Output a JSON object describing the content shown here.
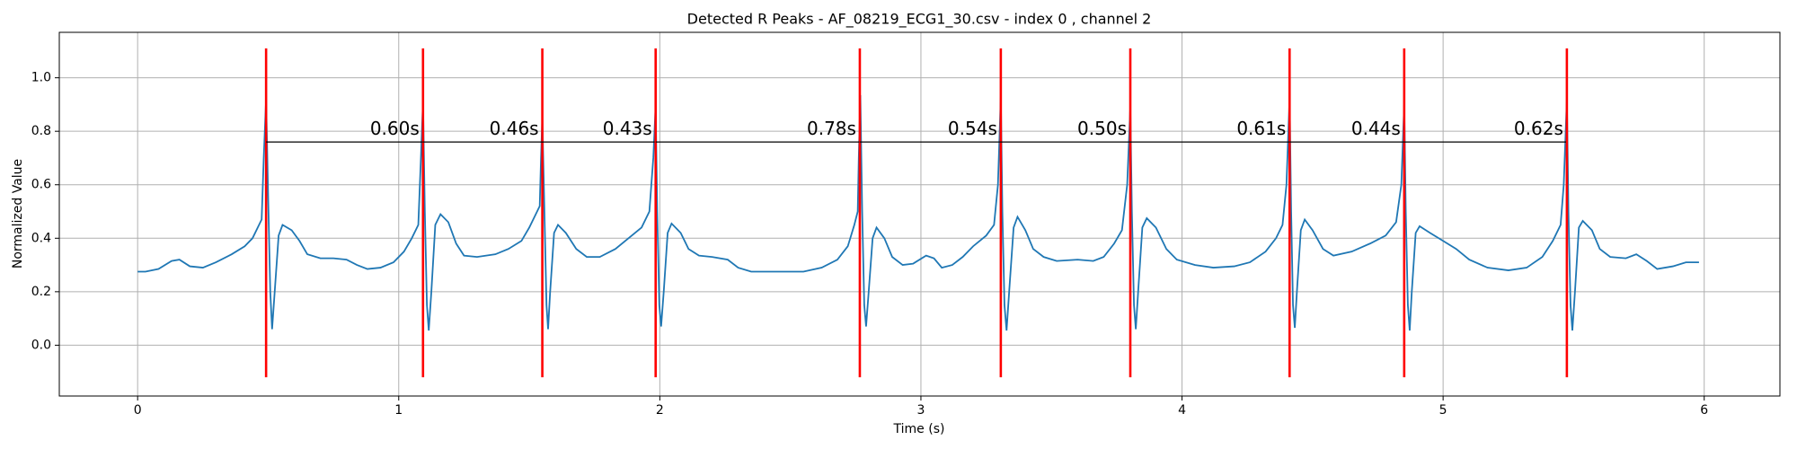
{
  "chart_data": {
    "type": "line",
    "title": "Detected R Peaks - AF_08219_ECG1_30.csv - index 0 , channel 2",
    "xlabel": "Time (s)",
    "ylabel": "Normalized Value",
    "xlim": [
      -0.3,
      6.29
    ],
    "ylim": [
      -0.19,
      1.17
    ],
    "xticks": [
      0,
      1,
      2,
      3,
      4,
      5,
      6
    ],
    "yticks": [
      {
        "value": 0,
        "label": "0.0"
      },
      0.2,
      0.4,
      0.6,
      0.8,
      {
        "value": 1,
        "label": "1.0"
      }
    ],
    "grid": true,
    "x": [
      0,
      0.03,
      0.08,
      0.13,
      0.16,
      0.2,
      0.25,
      0.3,
      0.36,
      0.41,
      0.44,
      0.46,
      0.475,
      0.483,
      0.492,
      0.5,
      0.508,
      0.515,
      0.525,
      0.54,
      0.555,
      0.59,
      0.62,
      0.65,
      0.7,
      0.75,
      0.8,
      0.84,
      0.88,
      0.93,
      0.98,
      1.02,
      1.05,
      1.075,
      1.085,
      1.093,
      1.1,
      1.108,
      1.115,
      1.125,
      1.14,
      1.16,
      1.19,
      1.22,
      1.25,
      1.3,
      1.37,
      1.42,
      1.47,
      1.5,
      1.525,
      1.54,
      1.545,
      1.55,
      1.558,
      1.566,
      1.572,
      1.58,
      1.595,
      1.61,
      1.64,
      1.68,
      1.72,
      1.77,
      1.83,
      1.88,
      1.93,
      1.96,
      1.975,
      1.984,
      1.99,
      1.998,
      2.005,
      2.015,
      2.03,
      2.045,
      2.08,
      2.11,
      2.15,
      2.2,
      2.26,
      2.3,
      2.35,
      2.45,
      2.55,
      2.62,
      2.68,
      2.72,
      2.745,
      2.758,
      2.762,
      2.768,
      2.775,
      2.783,
      2.79,
      2.8,
      2.815,
      2.83,
      2.86,
      2.89,
      2.93,
      2.97,
      3.02,
      3.05,
      3.08,
      3.12,
      3.16,
      3.2,
      3.25,
      3.28,
      3.295,
      3.306,
      3.312,
      3.32,
      3.328,
      3.338,
      3.355,
      3.37,
      3.4,
      3.43,
      3.47,
      3.52,
      3.6,
      3.66,
      3.7,
      3.74,
      3.77,
      3.79,
      3.802,
      3.808,
      3.816,
      3.823,
      3.832,
      3.848,
      3.865,
      3.9,
      3.94,
      3.98,
      4.05,
      4.12,
      4.2,
      4.26,
      4.32,
      4.36,
      4.385,
      4.4,
      4.412,
      4.418,
      4.425,
      4.432,
      4.44,
      4.455,
      4.47,
      4.5,
      4.54,
      4.58,
      4.65,
      4.72,
      4.78,
      4.82,
      4.84,
      4.851,
      4.857,
      4.865,
      4.872,
      4.88,
      4.895,
      4.91,
      4.95,
      5.0,
      5.05,
      5.1,
      5.17,
      5.25,
      5.32,
      5.38,
      5.42,
      5.45,
      5.462,
      5.474,
      5.48,
      5.488,
      5.495,
      5.505,
      5.52,
      5.535,
      5.57,
      5.6,
      5.64,
      5.7,
      5.74,
      5.78,
      5.82,
      5.88,
      5.93,
      5.98
    ],
    "series": [
      {
        "color": "#1f77b4",
        "values": [
          0.275,
          0.275,
          0.285,
          0.315,
          0.32,
          0.295,
          0.29,
          0.31,
          0.34,
          0.37,
          0.4,
          0.44,
          0.47,
          0.7,
          0.92,
          0.55,
          0.2,
          0.06,
          0.2,
          0.41,
          0.45,
          0.43,
          0.39,
          0.34,
          0.325,
          0.325,
          0.32,
          0.3,
          0.285,
          0.29,
          0.31,
          0.35,
          0.4,
          0.45,
          0.7,
          0.91,
          0.5,
          0.15,
          0.055,
          0.2,
          0.45,
          0.49,
          0.46,
          0.38,
          0.335,
          0.33,
          0.34,
          0.36,
          0.39,
          0.44,
          0.49,
          0.52,
          0.7,
          0.85,
          0.5,
          0.15,
          0.06,
          0.2,
          0.42,
          0.45,
          0.42,
          0.36,
          0.33,
          0.33,
          0.36,
          0.4,
          0.44,
          0.5,
          0.7,
          0.895,
          0.5,
          0.15,
          0.07,
          0.2,
          0.42,
          0.455,
          0.42,
          0.36,
          0.335,
          0.33,
          0.32,
          0.29,
          0.275,
          0.275,
          0.275,
          0.29,
          0.32,
          0.37,
          0.45,
          0.5,
          0.7,
          0.935,
          0.5,
          0.15,
          0.07,
          0.2,
          0.4,
          0.44,
          0.4,
          0.33,
          0.3,
          0.305,
          0.335,
          0.325,
          0.29,
          0.3,
          0.33,
          0.37,
          0.41,
          0.45,
          0.6,
          0.93,
          0.5,
          0.15,
          0.055,
          0.2,
          0.44,
          0.48,
          0.43,
          0.36,
          0.33,
          0.315,
          0.32,
          0.315,
          0.33,
          0.38,
          0.43,
          0.6,
          0.89,
          0.5,
          0.15,
          0.06,
          0.2,
          0.44,
          0.475,
          0.44,
          0.36,
          0.32,
          0.3,
          0.29,
          0.295,
          0.31,
          0.35,
          0.4,
          0.45,
          0.6,
          0.925,
          0.5,
          0.15,
          0.065,
          0.2,
          0.43,
          0.47,
          0.43,
          0.36,
          0.335,
          0.35,
          0.38,
          0.41,
          0.46,
          0.6,
          0.9,
          0.5,
          0.15,
          0.055,
          0.2,
          0.42,
          0.445,
          0.42,
          0.39,
          0.36,
          0.32,
          0.29,
          0.28,
          0.29,
          0.33,
          0.39,
          0.45,
          0.6,
          0.92,
          0.5,
          0.15,
          0.055,
          0.2,
          0.44,
          0.465,
          0.43,
          0.36,
          0.33,
          0.325,
          0.34,
          0.315,
          0.285,
          0.295,
          0.31,
          0.31
        ]
      }
    ],
    "peaks": [
      0.492,
      1.093,
      1.55,
      1.984,
      2.766,
      3.306,
      3.802,
      4.412,
      4.851,
      5.474
    ],
    "peak_color": "#ff0000",
    "peak_span": [
      -0.12,
      1.11
    ],
    "intervals": {
      "values": [
        0.6,
        0.46,
        0.43,
        0.78,
        0.54,
        0.5,
        0.61,
        0.44,
        0.62
      ],
      "value_labels": [
        "0.60s",
        "0.46s",
        "0.43s",
        "0.78s",
        "0.54s",
        "0.50s",
        "0.61s",
        "0.44s",
        "0.62s"
      ],
      "y": 0.76,
      "label_y": 0.805,
      "color": "#000000"
    }
  }
}
